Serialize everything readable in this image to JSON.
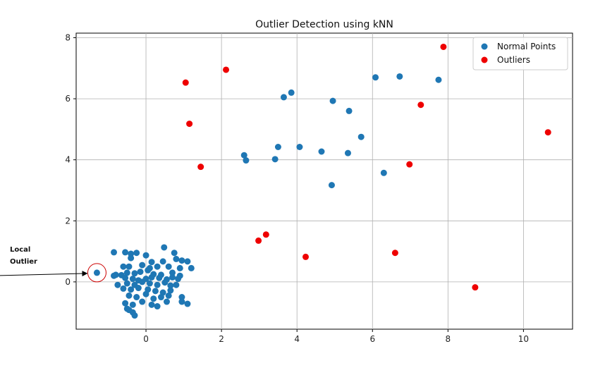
{
  "chart_data": {
    "type": "scatter",
    "title": "Outlier Detection using kNN",
    "xlabel": "",
    "ylabel": "",
    "xlim": [
      -1.85,
      11.3
    ],
    "ylim": [
      -1.55,
      8.15
    ],
    "xticks": [
      0,
      2,
      4,
      6,
      8,
      10
    ],
    "yticks": [
      0,
      2,
      4,
      6,
      8
    ],
    "grid": true,
    "legend_position": "top-right",
    "series": [
      {
        "name": "Normal Points",
        "color": "#1f77b4",
        "points": [
          [
            -1.3,
            0.3
          ],
          [
            -0.85,
            0.97
          ],
          [
            -0.55,
            0.97
          ],
          [
            -0.4,
            0.92
          ],
          [
            -0.25,
            0.95
          ],
          [
            0.0,
            0.87
          ],
          [
            0.48,
            1.13
          ],
          [
            0.75,
            0.95
          ],
          [
            -0.4,
            0.78
          ],
          [
            0.15,
            0.65
          ],
          [
            0.45,
            0.67
          ],
          [
            0.8,
            0.75
          ],
          [
            0.95,
            0.7
          ],
          [
            1.1,
            0.67
          ],
          [
            -0.6,
            0.5
          ],
          [
            -0.45,
            0.5
          ],
          [
            -0.1,
            0.55
          ],
          [
            0.1,
            0.45
          ],
          [
            0.3,
            0.5
          ],
          [
            0.6,
            0.5
          ],
          [
            0.9,
            0.45
          ],
          [
            1.2,
            0.45
          ],
          [
            -0.8,
            0.23
          ],
          [
            -0.65,
            0.22
          ],
          [
            -0.5,
            0.3
          ],
          [
            -0.3,
            0.28
          ],
          [
            -0.15,
            0.33
          ],
          [
            0.05,
            0.38
          ],
          [
            0.2,
            0.25
          ],
          [
            0.4,
            0.23
          ],
          [
            0.7,
            0.3
          ],
          [
            0.9,
            0.2
          ],
          [
            -0.85,
            0.2
          ],
          [
            -0.55,
            0.13
          ],
          [
            -0.35,
            0.1
          ],
          [
            -0.2,
            0.05
          ],
          [
            0.0,
            0.1
          ],
          [
            0.15,
            0.15
          ],
          [
            0.35,
            0.13
          ],
          [
            0.55,
            0.08
          ],
          [
            0.7,
            0.15
          ],
          [
            0.85,
            0.1
          ],
          [
            -0.75,
            -0.1
          ],
          [
            -0.5,
            -0.05
          ],
          [
            -0.3,
            -0.1
          ],
          [
            -0.1,
            0.0
          ],
          [
            0.1,
            -0.05
          ],
          [
            0.3,
            -0.1
          ],
          [
            0.5,
            -0.02
          ],
          [
            0.65,
            -0.12
          ],
          [
            0.8,
            -0.1
          ],
          [
            -0.6,
            -0.22
          ],
          [
            -0.4,
            -0.25
          ],
          [
            -0.2,
            -0.2
          ],
          [
            0.05,
            -0.25
          ],
          [
            0.25,
            -0.3
          ],
          [
            0.45,
            -0.35
          ],
          [
            0.65,
            -0.28
          ],
          [
            -0.45,
            -0.45
          ],
          [
            -0.25,
            -0.5
          ],
          [
            0.0,
            -0.4
          ],
          [
            0.2,
            -0.55
          ],
          [
            0.4,
            -0.5
          ],
          [
            0.6,
            -0.45
          ],
          [
            0.95,
            -0.5
          ],
          [
            -0.55,
            -0.7
          ],
          [
            -0.35,
            -0.75
          ],
          [
            -0.1,
            -0.65
          ],
          [
            0.15,
            -0.75
          ],
          [
            0.3,
            -0.8
          ],
          [
            0.55,
            -0.65
          ],
          [
            0.95,
            -0.65
          ],
          [
            1.1,
            -0.72
          ],
          [
            -0.5,
            -0.88
          ],
          [
            -0.35,
            -1.0
          ],
          [
            -0.45,
            -0.92
          ],
          [
            -0.3,
            -1.1
          ],
          [
            2.6,
            4.15
          ],
          [
            2.65,
            3.98
          ],
          [
            3.42,
            4.02
          ],
          [
            3.5,
            4.42
          ],
          [
            3.65,
            6.05
          ],
          [
            3.85,
            6.2
          ],
          [
            4.07,
            4.42
          ],
          [
            4.65,
            4.27
          ],
          [
            4.92,
            3.17
          ],
          [
            4.95,
            5.93
          ],
          [
            5.35,
            4.22
          ],
          [
            5.38,
            5.6
          ],
          [
            5.7,
            4.75
          ],
          [
            6.08,
            6.7
          ],
          [
            6.3,
            3.57
          ],
          [
            6.72,
            6.73
          ],
          [
            7.75,
            6.62
          ]
        ]
      },
      {
        "name": "Outliers",
        "color": "#ee0000",
        "points": [
          [
            1.05,
            6.53
          ],
          [
            1.15,
            5.18
          ],
          [
            1.45,
            3.77
          ],
          [
            2.12,
            6.95
          ],
          [
            2.98,
            1.35
          ],
          [
            3.18,
            1.55
          ],
          [
            4.23,
            0.82
          ],
          [
            6.6,
            0.95
          ],
          [
            6.98,
            3.85
          ],
          [
            7.28,
            5.8
          ],
          [
            7.88,
            7.7
          ],
          [
            8.72,
            -0.18
          ],
          [
            10.65,
            4.9
          ]
        ]
      }
    ],
    "annotation": {
      "text_lines": [
        "Local",
        "Outlier"
      ],
      "target": [
        -1.3,
        0.3
      ]
    }
  }
}
